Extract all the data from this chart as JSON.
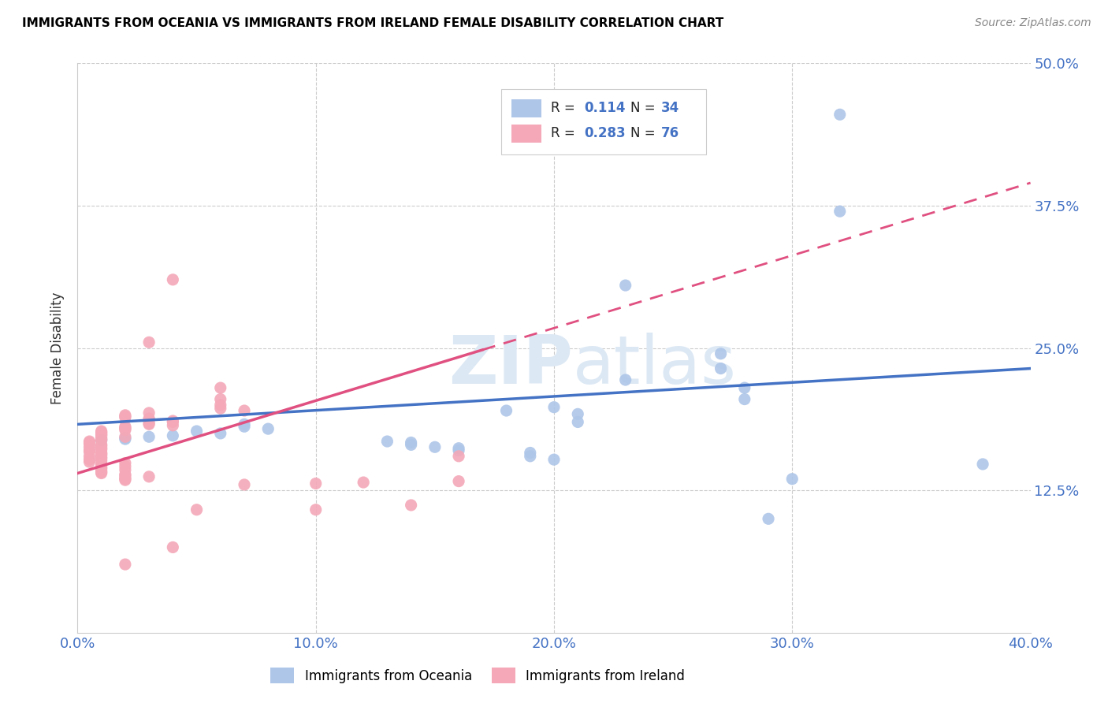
{
  "title": "IMMIGRANTS FROM OCEANIA VS IMMIGRANTS FROM IRELAND FEMALE DISABILITY CORRELATION CHART",
  "source": "Source: ZipAtlas.com",
  "xlabel_ticks": [
    "0.0%",
    "10.0%",
    "20.0%",
    "30.0%",
    "40.0%"
  ],
  "ylabel_ticks": [
    "12.5%",
    "25.0%",
    "37.5%",
    "50.0%"
  ],
  "xlim": [
    0.0,
    0.4
  ],
  "ylim": [
    0.0,
    0.5
  ],
  "ylabel": "Female Disability",
  "legend_entries": [
    {
      "label": "Immigrants from Oceania",
      "color": "#aec6e8"
    },
    {
      "label": "Immigrants from Ireland",
      "color": "#f4a8b8"
    }
  ],
  "R_oceania": 0.114,
  "N_oceania": 34,
  "R_ireland": 0.283,
  "N_ireland": 76,
  "color_blue": "#4472C4",
  "color_blue_scatter": "#aec6e8",
  "color_pink_scatter": "#f4a8b8",
  "color_trendline_blue": "#4472C4",
  "color_trendline_pink": "#e05080",
  "watermark_color": "#dce8f4",
  "oceania_points": [
    [
      0.32,
      0.455
    ],
    [
      0.32,
      0.37
    ],
    [
      0.23,
      0.305
    ],
    [
      0.27,
      0.245
    ],
    [
      0.27,
      0.232
    ],
    [
      0.23,
      0.222
    ],
    [
      0.28,
      0.215
    ],
    [
      0.28,
      0.205
    ],
    [
      0.2,
      0.198
    ],
    [
      0.18,
      0.195
    ],
    [
      0.21,
      0.192
    ],
    [
      0.21,
      0.185
    ],
    [
      0.07,
      0.183
    ],
    [
      0.07,
      0.181
    ],
    [
      0.08,
      0.179
    ],
    [
      0.05,
      0.177
    ],
    [
      0.06,
      0.175
    ],
    [
      0.04,
      0.173
    ],
    [
      0.03,
      0.172
    ],
    [
      0.02,
      0.171
    ],
    [
      0.02,
      0.17
    ],
    [
      0.01,
      0.169
    ],
    [
      0.13,
      0.168
    ],
    [
      0.14,
      0.167
    ],
    [
      0.14,
      0.165
    ],
    [
      0.15,
      0.163
    ],
    [
      0.16,
      0.162
    ],
    [
      0.16,
      0.16
    ],
    [
      0.19,
      0.158
    ],
    [
      0.19,
      0.155
    ],
    [
      0.2,
      0.152
    ],
    [
      0.38,
      0.148
    ],
    [
      0.3,
      0.135
    ],
    [
      0.29,
      0.1
    ]
  ],
  "ireland_points": [
    [
      0.04,
      0.31
    ],
    [
      0.03,
      0.255
    ],
    [
      0.06,
      0.215
    ],
    [
      0.06,
      0.205
    ],
    [
      0.06,
      0.2
    ],
    [
      0.06,
      0.197
    ],
    [
      0.07,
      0.195
    ],
    [
      0.03,
      0.193
    ],
    [
      0.02,
      0.191
    ],
    [
      0.02,
      0.19
    ],
    [
      0.02,
      0.189
    ],
    [
      0.03,
      0.188
    ],
    [
      0.03,
      0.187
    ],
    [
      0.04,
      0.186
    ],
    [
      0.04,
      0.185
    ],
    [
      0.03,
      0.184
    ],
    [
      0.03,
      0.183
    ],
    [
      0.04,
      0.182
    ],
    [
      0.02,
      0.181
    ],
    [
      0.02,
      0.18
    ],
    [
      0.02,
      0.179
    ],
    [
      0.02,
      0.178
    ],
    [
      0.01,
      0.177
    ],
    [
      0.01,
      0.176
    ],
    [
      0.01,
      0.175
    ],
    [
      0.01,
      0.174
    ],
    [
      0.01,
      0.173
    ],
    [
      0.02,
      0.172
    ],
    [
      0.01,
      0.171
    ],
    [
      0.01,
      0.17
    ],
    [
      0.01,
      0.169
    ],
    [
      0.005,
      0.168
    ],
    [
      0.005,
      0.167
    ],
    [
      0.005,
      0.166
    ],
    [
      0.01,
      0.165
    ],
    [
      0.01,
      0.164
    ],
    [
      0.005,
      0.163
    ],
    [
      0.01,
      0.162
    ],
    [
      0.01,
      0.161
    ],
    [
      0.005,
      0.16
    ],
    [
      0.005,
      0.159
    ],
    [
      0.01,
      0.158
    ],
    [
      0.01,
      0.157
    ],
    [
      0.01,
      0.156
    ],
    [
      0.005,
      0.155
    ],
    [
      0.01,
      0.154
    ],
    [
      0.01,
      0.153
    ],
    [
      0.005,
      0.152
    ],
    [
      0.01,
      0.151
    ],
    [
      0.005,
      0.15
    ],
    [
      0.02,
      0.149
    ],
    [
      0.01,
      0.148
    ],
    [
      0.01,
      0.147
    ],
    [
      0.02,
      0.146
    ],
    [
      0.01,
      0.145
    ],
    [
      0.01,
      0.144
    ],
    [
      0.02,
      0.143
    ],
    [
      0.01,
      0.142
    ],
    [
      0.01,
      0.141
    ],
    [
      0.01,
      0.14
    ],
    [
      0.02,
      0.139
    ],
    [
      0.02,
      0.138
    ],
    [
      0.03,
      0.137
    ],
    [
      0.02,
      0.136
    ],
    [
      0.02,
      0.135
    ],
    [
      0.02,
      0.134
    ],
    [
      0.16,
      0.133
    ],
    [
      0.12,
      0.132
    ],
    [
      0.1,
      0.131
    ],
    [
      0.07,
      0.13
    ],
    [
      0.16,
      0.155
    ],
    [
      0.14,
      0.112
    ],
    [
      0.1,
      0.108
    ],
    [
      0.05,
      0.108
    ],
    [
      0.04,
      0.075
    ],
    [
      0.02,
      0.06
    ]
  ]
}
